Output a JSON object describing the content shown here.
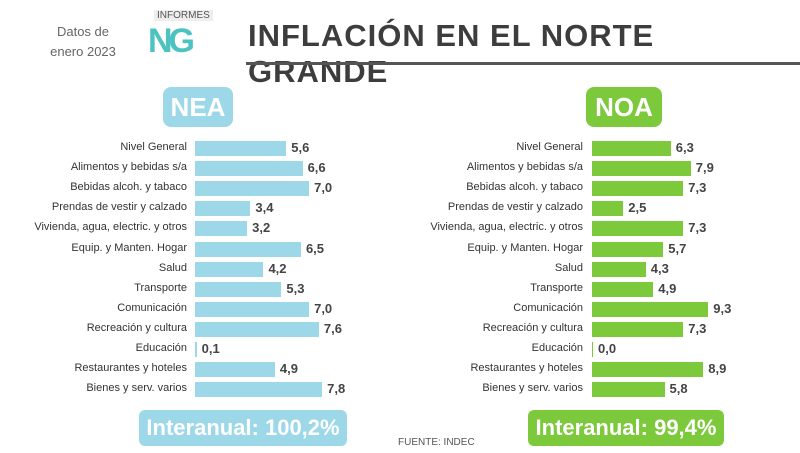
{
  "header": {
    "date_line1": "Datos de",
    "date_line2": "enero 2023",
    "logo_top": "INFORMES",
    "logo_main": "NG",
    "title": "INFLACIÓN EN EL NORTE GRANDE"
  },
  "source": "FUENTE: INDEC",
  "colors": {
    "nea": "#9dd8e8",
    "noa": "#7dc93c"
  },
  "chart_data": [
    {
      "type": "bar",
      "orientation": "horizontal",
      "title": "NEA",
      "categories": [
        "Nivel General",
        "Alimentos y bebidas s/a",
        "Bebidas alcoh. y tabaco",
        "Prendas de vestir y calzado",
        "Vivienda, agua, electric. y otros",
        "Equip. y Manten. Hogar",
        "Salud",
        "Transporte",
        "Comunicación",
        "Recreación y cultura",
        "Educación",
        "Restaurantes y hoteles",
        "Bienes y serv. varios"
      ],
      "values": [
        5.6,
        6.6,
        7.0,
        3.4,
        3.2,
        6.5,
        4.2,
        5.3,
        7.0,
        7.6,
        0.1,
        4.9,
        7.8
      ],
      "labels": [
        "5,6",
        "6,6",
        "7,0",
        "3,4",
        "3,2",
        "6,5",
        "4,2",
        "5,3",
        "7,0",
        "7,6",
        "0,1",
        "4,9",
        "7,8"
      ],
      "interanual": "Interanual: 100,2%"
    },
    {
      "type": "bar",
      "orientation": "horizontal",
      "title": "NOA",
      "categories": [
        "Nivel General",
        "Alimentos y bebidas s/a",
        "Bebidas alcoh. y tabaco",
        "Prendas de vestir y calzado",
        "Vivienda, agua, electric. y otros",
        "Equip. y Manten. Hogar",
        "Salud",
        "Transporte",
        "Comunicación",
        "Recreación y cultura",
        "Educación",
        "Restaurantes y hoteles",
        "Bienes y serv. varios"
      ],
      "values": [
        6.3,
        7.9,
        7.3,
        2.5,
        7.3,
        5.7,
        4.3,
        4.9,
        9.3,
        7.3,
        0.0,
        8.9,
        5.8
      ],
      "labels": [
        "6,3",
        "7,9",
        "7,3",
        "2,5",
        "7,3",
        "5,7",
        "4,3",
        "4,9",
        "9,3",
        "7,3",
        "0,0",
        "8,9",
        "5,8"
      ],
      "interanual": "Interanual: 99,4%"
    }
  ]
}
